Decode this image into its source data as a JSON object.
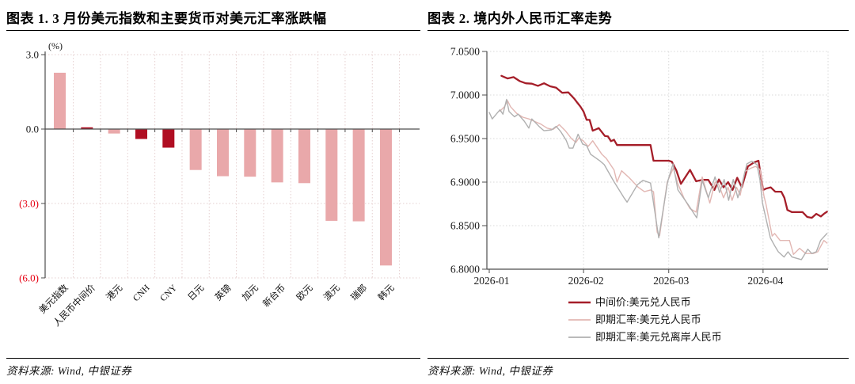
{
  "panels": {
    "left": {
      "title": "图表 1. 3 月份美元指数和主要货币对美元汇率涨跌幅",
      "source": "资料来源: Wind, 中银证券"
    },
    "right": {
      "title": "图表 2. 境内外人民币汇率走势",
      "source": "资料来源: Wind, 中银证券"
    }
  },
  "colors": {
    "bar_light": "#e9a8aa",
    "bar_dark": "#b00e22",
    "red_line": "#a51e29",
    "pink_line": "#e2b7b3",
    "gray_line": "#b0b0b0",
    "grid_left": "#e5cfcf",
    "grid_right": "#d8d8d8",
    "axis": "#4d4d4d",
    "tick_label": "#1a1a1a",
    "negative_label": "#e60012"
  },
  "chart_data": [
    {
      "id": "usd-index-and-currency-changes",
      "type": "bar",
      "title": "图表 1. 3 月份美元指数和主要货币对美元汇率涨跌幅",
      "unit_label": "(%)",
      "categories": [
        "美元指数",
        "人民币中间价",
        "港元",
        "CNH",
        "CNY",
        "日元",
        "英镑",
        "加元",
        "新台币",
        "欧元",
        "澳元",
        "瑞郎",
        "韩元"
      ],
      "values": [
        2.27,
        0.07,
        -0.18,
        -0.4,
        -0.75,
        -1.65,
        -1.9,
        -1.92,
        -2.15,
        -2.18,
        -3.7,
        -3.72,
        -5.5
      ],
      "bar_styles": [
        "light",
        "dark",
        "light",
        "dark",
        "dark",
        "light",
        "light",
        "light",
        "light",
        "light",
        "light",
        "light",
        "light"
      ],
      "y_ticks": [
        {
          "label": "3.0",
          "value": 3,
          "negative": false
        },
        {
          "label": "0.0",
          "value": 0,
          "negative": false
        },
        {
          "label": "(3.0)",
          "value": -3,
          "negative": true
        },
        {
          "label": "(6.0)",
          "value": -6,
          "negative": true
        }
      ],
      "ylim": [
        -6,
        3
      ],
      "grid": true
    },
    {
      "id": "rmb-exchange-rate-trend",
      "type": "line",
      "title": "图表 2. 境内外人民币汇率走势",
      "ylim": [
        6.8,
        7.05
      ],
      "y_ticks": [
        {
          "label": "7.0500",
          "value": 7.05
        },
        {
          "label": "7.0000",
          "value": 7.0
        },
        {
          "label": "6.9500",
          "value": 6.95
        },
        {
          "label": "6.9000",
          "value": 6.9
        },
        {
          "label": "6.8500",
          "value": 6.85
        },
        {
          "label": "6.8000",
          "value": 6.8
        }
      ],
      "x_ticks": [
        {
          "label": "2026-01",
          "day": 0
        },
        {
          "label": "2026-02",
          "day": 31
        },
        {
          "label": "2026-03",
          "day": 59
        },
        {
          "label": "2026-04",
          "day": 90
        }
      ],
      "xlim_days": [
        -0.8,
        111.5
      ],
      "grid": true,
      "legend_position": "bottom",
      "series": [
        {
          "name": "中间价:美元兑人民币",
          "color_key": "red_line",
          "stroke_width": 2.3,
          "points": [
            [
              4,
              7.022
            ],
            [
              6,
              7.019
            ],
            [
              8,
              7.0205
            ],
            [
              10,
              7.016
            ],
            [
              12,
              7.0135
            ],
            [
              14,
              7.013
            ],
            [
              16,
              7.0105
            ],
            [
              18,
              7.0135
            ],
            [
              20,
              7.01
            ],
            [
              22,
              7.0085
            ],
            [
              24,
              7.0025
            ],
            [
              26,
              7.003
            ],
            [
              28,
              6.9955
            ],
            [
              29,
              6.991
            ],
            [
              30,
              6.9865
            ],
            [
              31,
              6.981
            ],
            [
              32,
              6.9715
            ],
            [
              33,
              6.9715
            ],
            [
              34,
              6.959
            ],
            [
              35,
              6.9605
            ],
            [
              36,
              6.962
            ],
            [
              38,
              6.953
            ],
            [
              39,
              6.9525
            ],
            [
              40,
              6.947
            ],
            [
              41,
              6.9485
            ],
            [
              42,
              6.9425
            ],
            [
              47,
              6.9425
            ],
            [
              53,
              6.9425
            ],
            [
              54,
              6.9245
            ],
            [
              59,
              6.9245
            ],
            [
              60,
              6.9235
            ],
            [
              61.5,
              6.9135
            ],
            [
              63,
              6.898
            ],
            [
              66,
              6.914
            ],
            [
              68,
              6.901
            ],
            [
              70,
              6.9025
            ],
            [
              72,
              6.9025
            ],
            [
              74,
              6.891
            ],
            [
              75.5,
              6.903
            ],
            [
              77,
              6.894
            ],
            [
              78.5,
              6.9
            ],
            [
              80,
              6.891
            ],
            [
              81.5,
              6.905
            ],
            [
              83,
              6.894
            ],
            [
              85,
              6.918
            ],
            [
              87,
              6.9225
            ],
            [
              88.5,
              6.9245
            ],
            [
              90,
              6.891
            ],
            [
              91,
              6.8925
            ],
            [
              92.5,
              6.894
            ],
            [
              94,
              6.889
            ],
            [
              96,
              6.889
            ],
            [
              97,
              6.882
            ],
            [
              98,
              6.868
            ],
            [
              99.5,
              6.8655
            ],
            [
              103,
              6.8655
            ],
            [
              104.5,
              6.86
            ],
            [
              106,
              6.859
            ],
            [
              107.5,
              6.8635
            ],
            [
              109,
              6.8605
            ],
            [
              110,
              6.8635
            ],
            [
              111,
              6.866
            ]
          ]
        },
        {
          "name": "即期汇率:美元兑人民币",
          "color_key": "pink_line",
          "stroke_width": 1.4,
          "points": [
            [
              3.5,
              6.9815
            ],
            [
              5,
              6.9865
            ],
            [
              6,
              6.9935
            ],
            [
              7,
              6.9865
            ],
            [
              9,
              6.979
            ],
            [
              11,
              6.9745
            ],
            [
              13,
              6.9725
            ],
            [
              15,
              6.9695
            ],
            [
              17,
              6.9665
            ],
            [
              19,
              6.962
            ],
            [
              21,
              6.9605
            ],
            [
              23,
              6.966
            ],
            [
              25,
              6.959
            ],
            [
              27,
              6.95
            ],
            [
              28.5,
              6.9455
            ],
            [
              29.5,
              6.951
            ],
            [
              31,
              6.947
            ],
            [
              32.5,
              6.941
            ],
            [
              34,
              6.9475
            ],
            [
              37,
              6.932
            ],
            [
              38.5,
              6.927
            ],
            [
              41,
              6.914
            ],
            [
              42,
              6.9
            ],
            [
              43.5,
              6.913
            ],
            [
              46,
              6.905
            ],
            [
              49,
              6.894
            ],
            [
              51,
              6.889
            ],
            [
              53,
              6.891
            ],
            [
              54,
              6.889
            ],
            [
              55.2,
              6.8425
            ],
            [
              56,
              6.8385
            ],
            [
              58.5,
              6.9
            ],
            [
              60.5,
              6.916
            ],
            [
              62,
              6.898
            ],
            [
              64,
              6.8815
            ],
            [
              66,
              6.8695
            ],
            [
              68,
              6.8655
            ],
            [
              70,
              6.906
            ],
            [
              72.5,
              6.876
            ],
            [
              74.2,
              6.9
            ],
            [
              75.5,
              6.897
            ],
            [
              77,
              6.882
            ],
            [
              78.5,
              6.894
            ],
            [
              79.8,
              6.879
            ],
            [
              81.3,
              6.894
            ],
            [
              82.5,
              6.885
            ],
            [
              84,
              6.912
            ],
            [
              86,
              6.916
            ],
            [
              87.5,
              6.918
            ],
            [
              89,
              6.9145
            ],
            [
              90.3,
              6.884
            ],
            [
              91,
              6.874
            ],
            [
              93,
              6.838
            ],
            [
              93.8,
              6.841
            ],
            [
              95.6,
              6.833
            ],
            [
              98.7,
              6.833
            ],
            [
              100,
              6.817
            ],
            [
              102,
              6.824
            ],
            [
              104,
              6.818
            ],
            [
              106.5,
              6.818
            ],
            [
              108,
              6.82
            ],
            [
              110,
              6.833
            ],
            [
              111,
              6.83
            ]
          ]
        },
        {
          "name": "即期汇率:美元兑离岸人民币",
          "color_key": "gray_line",
          "stroke_width": 1.4,
          "points": [
            [
              0,
              6.98
            ],
            [
              1,
              6.9725
            ],
            [
              3.5,
              6.983
            ],
            [
              4.5,
              6.978
            ],
            [
              5.7,
              6.995
            ],
            [
              6.5,
              6.981
            ],
            [
              8.3,
              6.975
            ],
            [
              9.5,
              6.978
            ],
            [
              11.5,
              6.97
            ],
            [
              13,
              6.962
            ],
            [
              14,
              6.9725
            ],
            [
              16.5,
              6.9635
            ],
            [
              18,
              6.959
            ],
            [
              20.5,
              6.96
            ],
            [
              22,
              6.964
            ],
            [
              23.5,
              6.958
            ],
            [
              25.3,
              6.948
            ],
            [
              26.3,
              6.939
            ],
            [
              27.5,
              6.939
            ],
            [
              29.2,
              6.955
            ],
            [
              30.7,
              6.9435
            ],
            [
              32,
              6.942
            ],
            [
              33.3,
              6.932
            ],
            [
              36.5,
              6.924
            ],
            [
              37.8,
              6.92
            ],
            [
              40.9,
              6.901
            ],
            [
              44.3,
              6.882
            ],
            [
              45.3,
              6.877
            ],
            [
              48.7,
              6.897
            ],
            [
              50.5,
              6.902
            ],
            [
              53,
              6.899
            ],
            [
              55.7,
              6.836
            ],
            [
              58.6,
              6.9
            ],
            [
              60.4,
              6.921
            ],
            [
              62,
              6.891
            ],
            [
              65.6,
              6.873
            ],
            [
              68.2,
              6.859
            ],
            [
              70,
              6.902
            ],
            [
              72,
              6.882
            ],
            [
              74.2,
              6.906
            ],
            [
              75.7,
              6.888
            ],
            [
              77.2,
              6.903
            ],
            [
              78.7,
              6.879
            ],
            [
              80.2,
              6.903
            ],
            [
              81.7,
              6.882
            ],
            [
              83,
              6.897
            ],
            [
              84.7,
              6.921
            ],
            [
              86.3,
              6.924
            ],
            [
              88,
              6.92
            ],
            [
              89,
              6.902
            ],
            [
              89.8,
              6.876
            ],
            [
              92.4,
              6.836
            ],
            [
              93.8,
              6.827
            ],
            [
              95,
              6.82
            ],
            [
              96.9,
              6.814
            ],
            [
              98.2,
              6.82
            ],
            [
              99.5,
              6.814
            ],
            [
              102.6,
              6.811
            ],
            [
              104.7,
              6.823
            ],
            [
              106,
              6.818
            ],
            [
              107.5,
              6.82
            ],
            [
              108.9,
              6.833
            ],
            [
              111,
              6.841
            ]
          ]
        }
      ]
    }
  ]
}
